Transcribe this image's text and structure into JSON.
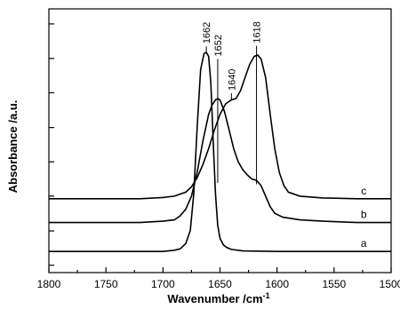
{
  "chart_data": {
    "type": "line",
    "title": "",
    "xlabel": "Wavenumber /cm",
    "xlabel_sup": "-1",
    "ylabel": "Absorbance /a.u.",
    "xlim": [
      1800,
      1500
    ],
    "x_reversed": true,
    "ylim": [
      0,
      1
    ],
    "y_tick_labels_shown": false,
    "x_ticks": [
      "1800",
      "1750",
      "1700",
      "1650",
      "1600",
      "1550",
      "1500"
    ],
    "y_ticks": [
      0.028,
      0.158,
      0.29,
      0.42,
      0.55,
      0.682,
      0.812,
      0.943
    ],
    "grid": false,
    "legend": "none",
    "series": [
      {
        "name": "a",
        "x": [
          1800,
          1700,
          1690,
          1685,
          1680,
          1676,
          1673,
          1670,
          1667,
          1664,
          1662,
          1660,
          1658,
          1656,
          1654,
          1652,
          1650,
          1647,
          1644,
          1640,
          1630,
          1600,
          1500
        ],
        "y": [
          0.08,
          0.08,
          0.085,
          0.09,
          0.11,
          0.16,
          0.3,
          0.55,
          0.77,
          0.83,
          0.835,
          0.82,
          0.72,
          0.5,
          0.3,
          0.18,
          0.13,
          0.105,
          0.095,
          0.088,
          0.082,
          0.08,
          0.08
        ]
      },
      {
        "name": "b",
        "x": [
          1800,
          1720,
          1700,
          1690,
          1685,
          1680,
          1675,
          1670,
          1665,
          1660,
          1657,
          1654,
          1652,
          1650,
          1646,
          1642,
          1638,
          1634,
          1630,
          1626,
          1622,
          1618,
          1614,
          1610,
          1606,
          1602,
          1595,
          1580,
          1560,
          1530,
          1500
        ],
        "y": [
          0.19,
          0.19,
          0.195,
          0.2,
          0.215,
          0.24,
          0.29,
          0.38,
          0.5,
          0.6,
          0.635,
          0.655,
          0.66,
          0.655,
          0.61,
          0.54,
          0.47,
          0.42,
          0.39,
          0.37,
          0.355,
          0.35,
          0.33,
          0.29,
          0.25,
          0.225,
          0.21,
          0.2,
          0.195,
          0.19,
          0.19
        ]
      },
      {
        "name": "c",
        "x": [
          1800,
          1720,
          1700,
          1690,
          1680,
          1675,
          1670,
          1665,
          1660,
          1655,
          1650,
          1645,
          1640,
          1636,
          1632,
          1628,
          1624,
          1620,
          1617,
          1614,
          1610,
          1606,
          1602,
          1598,
          1594,
          1590,
          1580,
          1560,
          1530,
          1500
        ],
        "y": [
          0.28,
          0.28,
          0.285,
          0.29,
          0.305,
          0.325,
          0.36,
          0.41,
          0.47,
          0.54,
          0.6,
          0.64,
          0.655,
          0.66,
          0.69,
          0.74,
          0.79,
          0.82,
          0.825,
          0.81,
          0.74,
          0.6,
          0.47,
          0.38,
          0.33,
          0.305,
          0.29,
          0.283,
          0.28,
          0.28
        ]
      }
    ],
    "annotations": [
      {
        "text": "1662",
        "x": 1662,
        "line_from": 0.835,
        "line_to": 0.858
      },
      {
        "text": "1652",
        "x": 1652,
        "line_from": 0.34,
        "line_to": 0.81
      },
      {
        "text": "1640",
        "x": 1640,
        "line_from": 0.655,
        "line_to": 0.68
      },
      {
        "text": "1618",
        "x": 1618,
        "line_from": 0.335,
        "line_to": 0.86
      }
    ]
  }
}
